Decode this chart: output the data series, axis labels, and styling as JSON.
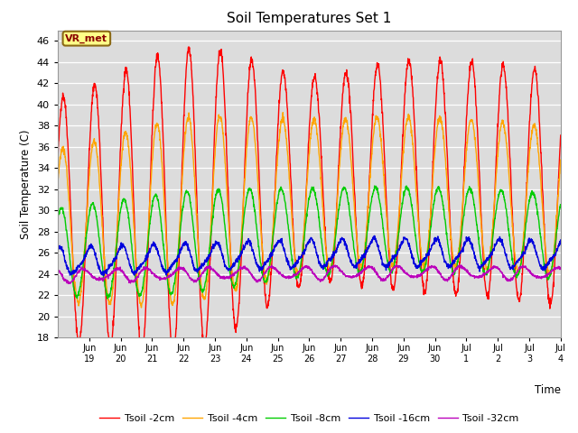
{
  "title": "Soil Temperatures Set 1",
  "xlabel": "Time",
  "ylabel": "Soil Temperature (C)",
  "ylim": [
    18,
    47
  ],
  "yticks": [
    18,
    20,
    22,
    24,
    26,
    28,
    30,
    32,
    34,
    36,
    38,
    40,
    42,
    44,
    46
  ],
  "legend_labels": [
    "Tsoil -2cm",
    "Tsoil -4cm",
    "Tsoil -8cm",
    "Tsoil -16cm",
    "Tsoil -32cm"
  ],
  "line_colors": [
    "#ff0000",
    "#ffa500",
    "#00cc00",
    "#0000dd",
    "#bb00bb"
  ],
  "annotation_text": "VR_met",
  "bg_color": "#dcdcdc",
  "tick_labels_x": [
    "Jun\n19",
    "Jun\n20",
    "Jun\n21",
    "Jun\n22",
    "Jun\n23",
    "Jun\n24",
    "Jun\n25",
    "Jun\n26",
    "Jun\n27",
    "Jun\n28",
    "Jun\n29",
    "Jun\n30",
    "Jul\n1",
    "Jul\n2",
    "Jul\n3",
    "Jul\n4"
  ]
}
